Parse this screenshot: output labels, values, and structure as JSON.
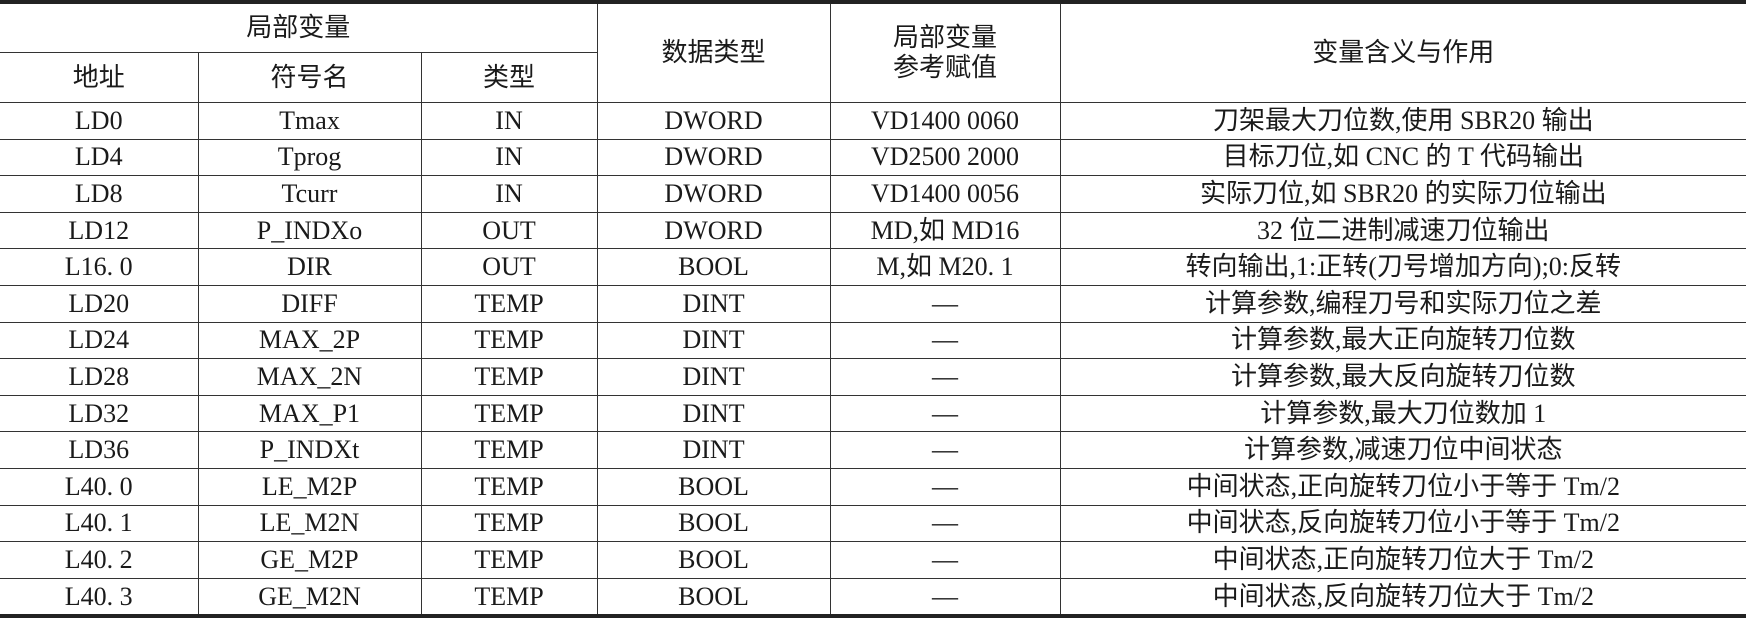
{
  "header": {
    "group": "局部变量",
    "address": "地址",
    "symbol": "符号名",
    "type": "类型",
    "data_type": "数据类型",
    "ref_value": "局部变量\n参考赋值",
    "ref_value_line1": "局部变量",
    "ref_value_line2": "参考赋值",
    "meaning": "变量含义与作用"
  },
  "rows": [
    [
      "LD0",
      "Tmax",
      "IN",
      "DWORD",
      "VD1400 0060",
      "刀架最大刀位数,使用 SBR20 输出"
    ],
    [
      "LD4",
      "Tprog",
      "IN",
      "DWORD",
      "VD2500 2000",
      "目标刀位,如 CNC 的 T 代码输出"
    ],
    [
      "LD8",
      "Tcurr",
      "IN",
      "DWORD",
      "VD1400 0056",
      "实际刀位,如 SBR20 的实际刀位输出"
    ],
    [
      "LD12",
      "P_INDXo",
      "OUT",
      "DWORD",
      "MD,如 MD16",
      "32 位二进制减速刀位输出"
    ],
    [
      "L16. 0",
      "DIR",
      "OUT",
      "BOOL",
      "M,如 M20. 1",
      "转向输出,1:正转(刀号增加方向);0:反转"
    ],
    [
      "LD20",
      "DIFF",
      "TEMP",
      "DINT",
      "—",
      "计算参数,编程刀号和实际刀位之差"
    ],
    [
      "LD24",
      "MAX_2P",
      "TEMP",
      "DINT",
      "—",
      "计算参数,最大正向旋转刀位数"
    ],
    [
      "LD28",
      "MAX_2N",
      "TEMP",
      "DINT",
      "—",
      "计算参数,最大反向旋转刀位数"
    ],
    [
      "LD32",
      "MAX_P1",
      "TEMP",
      "DINT",
      "—",
      "计算参数,最大刀位数加 1"
    ],
    [
      "LD36",
      "P_INDXt",
      "TEMP",
      "DINT",
      "—",
      "计算参数,减速刀位中间状态"
    ],
    [
      "L40. 0",
      "LE_M2P",
      "TEMP",
      "BOOL",
      "—",
      "中间状态,正向旋转刀位小于等于 Tm/2"
    ],
    [
      "L40. 1",
      "LE_M2N",
      "TEMP",
      "BOOL",
      "—",
      "中间状态,反向旋转刀位小于等于 Tm/2"
    ],
    [
      "L40. 2",
      "GE_M2P",
      "TEMP",
      "BOOL",
      "—",
      "中间状态,正向旋转刀位大于 Tm/2"
    ],
    [
      "L40. 3",
      "GE_M2N",
      "TEMP",
      "BOOL",
      "—",
      "中间状态,反向旋转刀位大于 Tm/2"
    ]
  ]
}
